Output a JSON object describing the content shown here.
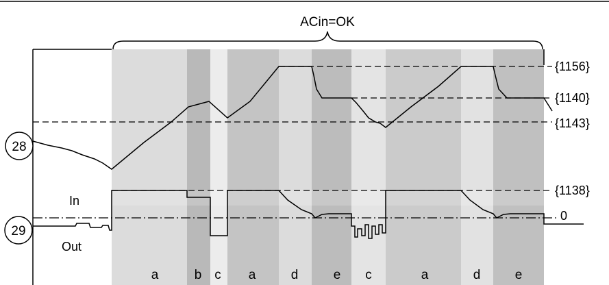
{
  "top_label": "ACin=OK",
  "markers": {
    "upper": "28",
    "lower": "29"
  },
  "side_labels": {
    "in": "In",
    "out": "Out"
  },
  "refs": {
    "r1156": "{1156}",
    "r1140": "{1140}",
    "r1143": "{1143}",
    "r1138": "{1138}",
    "zero": "0"
  },
  "phases": [
    "a",
    "b",
    "c",
    "a",
    "d",
    "e",
    "c",
    "a",
    "d",
    "e"
  ],
  "colors": {
    "band_light": "#dcdcdc",
    "band_mid": "#cfcfcf",
    "band_dark": "#b9b9b9",
    "band_pale": "#ececec",
    "line": "#000000"
  }
}
